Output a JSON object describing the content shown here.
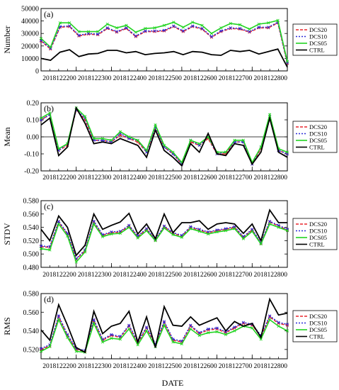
{
  "xlabel": "DATE",
  "series_styles": [
    {
      "name": "DCS20",
      "color": "#e8262b",
      "dash": "4,2",
      "marker": "x"
    },
    {
      "name": "DCS10",
      "color": "#2b2bd8",
      "dash": "2,2",
      "marker": "x"
    },
    {
      "name": "DCS05",
      "color": "#22d422",
      "dash": "",
      "marker": "x"
    },
    {
      "name": "CTRL",
      "color": "#000000",
      "dash": "",
      "marker": "none"
    }
  ],
  "chart_data": [
    {
      "type": "line",
      "panel_label": "(a)",
      "ylabel": "Number",
      "ylim": [
        0,
        50000
      ],
      "yticks": [
        "0",
        "10000",
        "20000",
        "30000",
        "40000",
        "50000"
      ],
      "x_tick_labels": [
        "2018122200",
        "2018122300",
        "2018122400",
        "2018122500",
        "2018122600",
        "2018122700",
        "2018122800"
      ],
      "x_tick_index": [
        4,
        8,
        12,
        16,
        20,
        24,
        28
      ],
      "grid": false,
      "zero_line": false,
      "legend": "right",
      "series": [
        {
          "name": "DCS20",
          "values": [
            24000,
            17500,
            35000,
            35500,
            28000,
            29500,
            29000,
            34000,
            31000,
            34000,
            27500,
            31500,
            31500,
            32000,
            35500,
            31500,
            35500,
            33500,
            27000,
            31500,
            34000,
            33500,
            31000,
            34500,
            34500,
            38500,
            6000
          ]
        },
        {
          "name": "DCS10",
          "values": [
            24500,
            18000,
            35500,
            36000,
            28500,
            30000,
            29500,
            34500,
            31500,
            34500,
            28000,
            32000,
            32000,
            32500,
            36000,
            32000,
            36000,
            34000,
            27500,
            32000,
            34500,
            34000,
            31500,
            35000,
            35000,
            39000,
            6500
          ]
        },
        {
          "name": "DCS05",
          "values": [
            26000,
            19000,
            38500,
            38500,
            31500,
            31500,
            31500,
            37500,
            34500,
            36500,
            31000,
            34000,
            34500,
            36500,
            39000,
            35000,
            39000,
            36500,
            30000,
            34500,
            38000,
            37000,
            33500,
            37500,
            38500,
            40500,
            7500
          ]
        },
        {
          "name": "CTRL",
          "values": [
            10000,
            8500,
            15000,
            17000,
            11500,
            13500,
            14000,
            16500,
            16500,
            14500,
            15500,
            13000,
            14000,
            14500,
            15500,
            13000,
            15500,
            15000,
            13000,
            12500,
            16500,
            15500,
            16500,
            13500,
            15500,
            17500,
            3000
          ]
        }
      ]
    },
    {
      "type": "line",
      "panel_label": "(b)",
      "ylabel": "Mean",
      "ylim": [
        -0.2,
        0.2
      ],
      "yticks": [
        "-0.20",
        "-0.10",
        "0.00",
        "0.10",
        "0.20"
      ],
      "x_tick_labels": [
        "2018122200",
        "2018122300",
        "2018122400",
        "2018122500",
        "2018122600",
        "2018122700",
        "2018122800"
      ],
      "x_tick_index": [
        4,
        8,
        12,
        16,
        20,
        24,
        28
      ],
      "grid": false,
      "zero_line": true,
      "legend": "right",
      "series": [
        {
          "name": "DCS20",
          "values": [
            0.1,
            0.13,
            -0.08,
            -0.05,
            0.16,
            0.1,
            -0.02,
            -0.02,
            -0.03,
            0.01,
            -0.01,
            -0.03,
            -0.09,
            0.06,
            -0.06,
            -0.1,
            -0.16,
            -0.03,
            -0.05,
            -0.01,
            -0.1,
            -0.1,
            -0.03,
            -0.03,
            -0.16,
            -0.07,
            0.12,
            -0.08,
            -0.1
          ]
        },
        {
          "name": "DCS10",
          "values": [
            0.1,
            0.13,
            -0.08,
            -0.04,
            0.16,
            0.11,
            -0.02,
            -0.02,
            -0.03,
            0.02,
            -0.01,
            -0.02,
            -0.09,
            0.06,
            -0.06,
            -0.1,
            -0.16,
            -0.02,
            -0.05,
            0.0,
            -0.1,
            -0.09,
            -0.03,
            -0.03,
            -0.16,
            -0.06,
            0.12,
            -0.08,
            -0.1
          ]
        },
        {
          "name": "DCS05",
          "values": [
            0.11,
            0.14,
            -0.07,
            -0.04,
            0.17,
            0.12,
            -0.01,
            -0.01,
            -0.02,
            0.03,
            0.0,
            -0.02,
            -0.08,
            0.07,
            -0.05,
            -0.09,
            -0.15,
            -0.02,
            -0.04,
            0.0,
            -0.09,
            -0.09,
            -0.02,
            -0.02,
            -0.15,
            -0.06,
            0.13,
            -0.07,
            -0.09
          ]
        },
        {
          "name": "CTRL",
          "values": [
            0.07,
            0.11,
            -0.11,
            -0.06,
            0.17,
            0.08,
            -0.04,
            -0.03,
            -0.04,
            -0.01,
            -0.03,
            -0.05,
            -0.12,
            0.04,
            -0.08,
            -0.12,
            -0.17,
            -0.04,
            -0.09,
            0.02,
            -0.1,
            -0.11,
            -0.04,
            -0.05,
            -0.16,
            -0.09,
            0.11,
            -0.09,
            -0.12
          ]
        }
      ]
    },
    {
      "type": "line",
      "panel_label": "(c)",
      "ylabel": "STDV",
      "ylim": [
        0.48,
        0.58
      ],
      "yticks": [
        "0.480",
        "0.500",
        "0.520",
        "0.540",
        "0.560",
        "0.580"
      ],
      "x_tick_labels": [
        "2018122200",
        "2018122300",
        "2018122400",
        "2018122500",
        "2018122600",
        "2018122700",
        "2018122800"
      ],
      "x_tick_index": [
        4,
        8,
        12,
        16,
        20,
        24,
        28
      ],
      "grid": false,
      "zero_line": false,
      "legend": "right",
      "series": [
        {
          "name": "DCS20",
          "values": [
            0.511,
            0.51,
            0.548,
            0.53,
            0.492,
            0.505,
            0.548,
            0.528,
            0.532,
            0.533,
            0.542,
            0.526,
            0.537,
            0.521,
            0.541,
            0.531,
            0.527,
            0.54,
            0.536,
            0.532,
            0.535,
            0.537,
            0.54,
            0.525,
            0.536,
            0.516,
            0.548,
            0.542,
            0.536
          ]
        },
        {
          "name": "DCS10",
          "values": [
            0.512,
            0.511,
            0.549,
            0.531,
            0.493,
            0.506,
            0.549,
            0.529,
            0.533,
            0.534,
            0.543,
            0.527,
            0.538,
            0.522,
            0.542,
            0.532,
            0.528,
            0.541,
            0.537,
            0.533,
            0.536,
            0.538,
            0.541,
            0.526,
            0.537,
            0.517,
            0.549,
            0.543,
            0.537
          ]
        },
        {
          "name": "DCS05",
          "values": [
            0.508,
            0.506,
            0.545,
            0.527,
            0.488,
            0.503,
            0.545,
            0.526,
            0.53,
            0.531,
            0.54,
            0.524,
            0.535,
            0.52,
            0.539,
            0.529,
            0.525,
            0.538,
            0.534,
            0.53,
            0.533,
            0.535,
            0.538,
            0.523,
            0.534,
            0.515,
            0.545,
            0.54,
            0.535
          ]
        },
        {
          "name": "CTRL",
          "values": [
            0.537,
            0.52,
            0.557,
            0.54,
            0.498,
            0.513,
            0.56,
            0.537,
            0.543,
            0.548,
            0.561,
            0.53,
            0.545,
            0.523,
            0.56,
            0.532,
            0.547,
            0.547,
            0.55,
            0.537,
            0.545,
            0.547,
            0.545,
            0.531,
            0.545,
            0.52,
            0.566,
            0.547,
            0.547
          ]
        }
      ]
    },
    {
      "type": "line",
      "panel_label": "(d)",
      "ylabel": "RMS",
      "ylim": [
        0.51,
        0.58
      ],
      "yticks": [
        "0.520",
        "0.540",
        "0.560",
        "0.580"
      ],
      "x_tick_labels": [
        "2018122200",
        "2018122300",
        "2018122400",
        "2018122500",
        "2018122600",
        "2018122700",
        "2018122800"
      ],
      "x_tick_index": [
        4,
        8,
        12,
        16,
        20,
        24,
        28
      ],
      "grid": false,
      "zero_line": false,
      "legend": "right",
      "series": [
        {
          "name": "DCS20",
          "values": [
            0.52,
            0.524,
            0.555,
            0.535,
            0.52,
            0.518,
            0.551,
            0.53,
            0.535,
            0.533,
            0.545,
            0.527,
            0.543,
            0.525,
            0.549,
            0.53,
            0.528,
            0.545,
            0.537,
            0.541,
            0.542,
            0.538,
            0.543,
            0.548,
            0.546,
            0.534,
            0.555,
            0.548,
            0.546
          ]
        },
        {
          "name": "DCS10",
          "values": [
            0.521,
            0.525,
            0.556,
            0.536,
            0.521,
            0.519,
            0.552,
            0.531,
            0.536,
            0.534,
            0.546,
            0.528,
            0.544,
            0.526,
            0.55,
            0.531,
            0.529,
            0.546,
            0.538,
            0.542,
            0.543,
            0.539,
            0.544,
            0.549,
            0.547,
            0.535,
            0.556,
            0.549,
            0.547
          ]
        },
        {
          "name": "DCS05",
          "values": [
            0.518,
            0.523,
            0.552,
            0.533,
            0.518,
            0.517,
            0.548,
            0.528,
            0.532,
            0.531,
            0.542,
            0.525,
            0.54,
            0.523,
            0.546,
            0.528,
            0.526,
            0.542,
            0.535,
            0.538,
            0.539,
            0.536,
            0.54,
            0.545,
            0.543,
            0.531,
            0.552,
            0.545,
            0.54
          ]
        },
        {
          "name": "CTRL",
          "values": [
            0.541,
            0.53,
            0.568,
            0.546,
            0.522,
            0.517,
            0.561,
            0.537,
            0.545,
            0.548,
            0.561,
            0.528,
            0.555,
            0.522,
            0.566,
            0.546,
            0.545,
            0.555,
            0.546,
            0.55,
            0.554,
            0.54,
            0.55,
            0.545,
            0.548,
            0.533,
            0.574,
            0.557,
            0.559
          ]
        }
      ]
    }
  ]
}
